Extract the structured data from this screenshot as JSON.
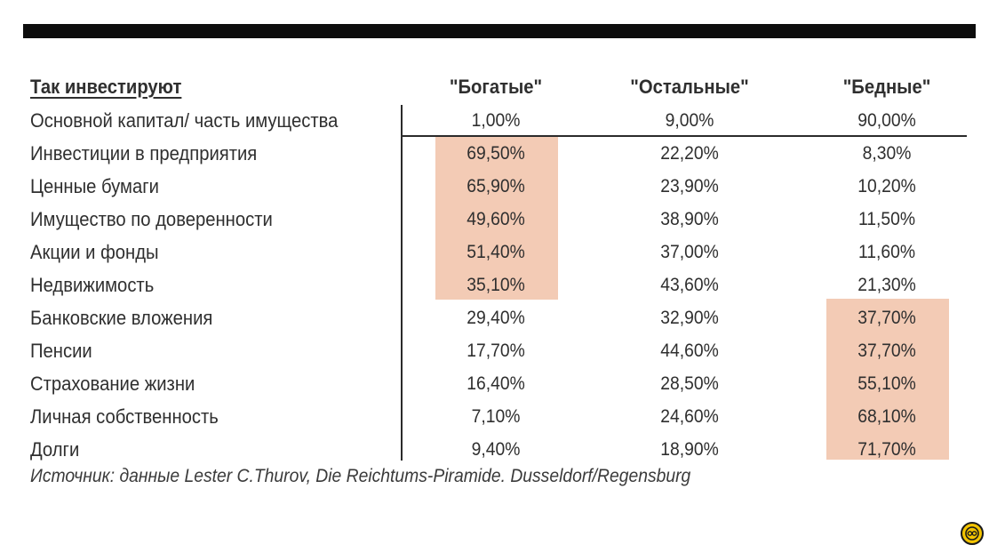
{
  "header": {
    "label": "Так инвестируют",
    "col1": "\"Богатые\"",
    "col2": "\"Остальные\"",
    "col3": "\"Бедные\""
  },
  "share_row": {
    "label": "Основной капитал/ часть имущества",
    "col1": "1,00%",
    "col2": "9,00%",
    "col3": "90,00%"
  },
  "rows": [
    {
      "label": "Инвестиции в предприятия",
      "col1": "69,50%",
      "col2": "22,20%",
      "col3": "8,30%"
    },
    {
      "label": "Ценные бумаги",
      "col1": "65,90%",
      "col2": "23,90%",
      "col3": "10,20%"
    },
    {
      "label": "Имущество по доверенности",
      "col1": "49,60%",
      "col2": "38,90%",
      "col3": "11,50%"
    },
    {
      "label": "Акции и фонды",
      "col1": "51,40%",
      "col2": "37,00%",
      "col3": "11,60%"
    },
    {
      "label": "Недвижимость",
      "col1": "35,10%",
      "col2": "43,60%",
      "col3": "21,30%"
    },
    {
      "label": "Банковские вложения",
      "col1": "29,40%",
      "col2": "32,90%",
      "col3": "37,70%"
    },
    {
      "label": "Пенсии",
      "col1": "17,70%",
      "col2": "44,60%",
      "col3": "37,70%"
    },
    {
      "label": "Страхование жизни",
      "col1": "16,40%",
      "col2": "28,50%",
      "col3": "55,10%"
    },
    {
      "label": "Личная собственность",
      "col1": "7,10%",
      "col2": "24,60%",
      "col3": "68,10%"
    },
    {
      "label": "Долги",
      "col1": "9,40%",
      "col2": "18,90%",
      "col3": "71,70%"
    }
  ],
  "source": "Источник: данные Lester C.Thurov, Die Reichtums-Piramide. Dusseldorf/Regensburg",
  "colors": {
    "highlight": "#f3cbb5",
    "rule": "#0d0d0d",
    "badge": "#f4c400"
  },
  "icons": {
    "badge": "watermark-logo-icon"
  }
}
